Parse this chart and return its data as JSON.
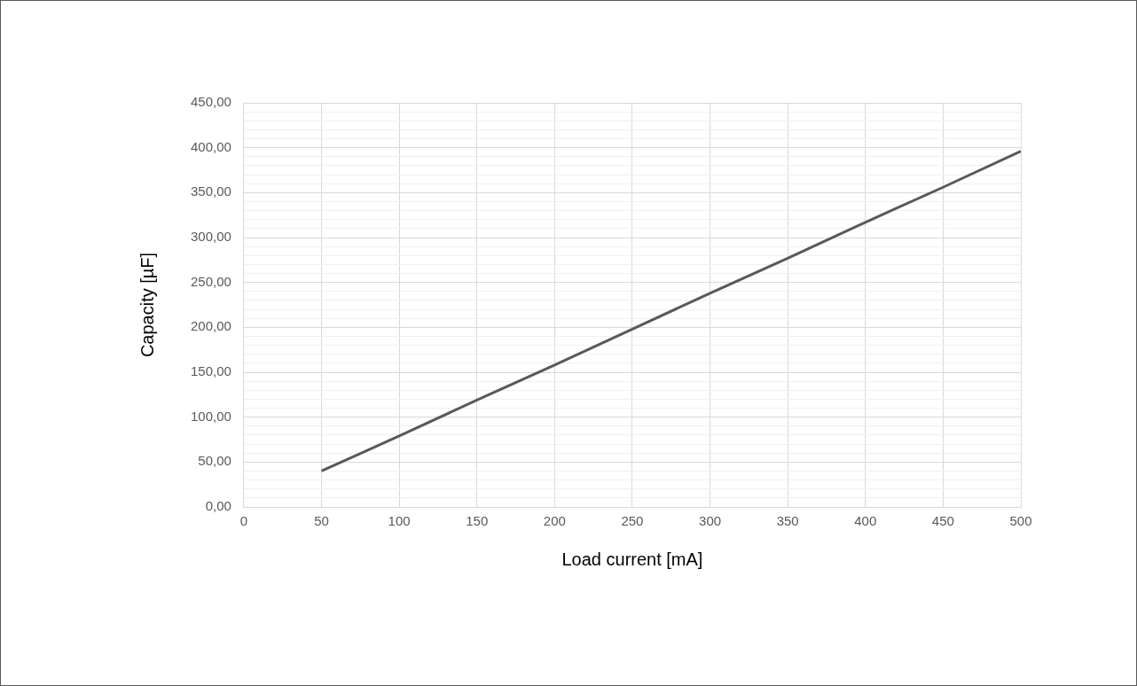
{
  "chart_data": {
    "type": "line",
    "xlabel": "Load current [mA]",
    "ylabel": "Capacity [µF]",
    "x": [
      50,
      100,
      150,
      200,
      250,
      300,
      350,
      400,
      450,
      500
    ],
    "series": [
      {
        "color": "#595959",
        "values": [
          40,
          79,
          119,
          158,
          198,
          238,
          277,
          317,
          356,
          396
        ]
      }
    ],
    "xlim": [
      0,
      500
    ],
    "xticks": [
      0,
      50,
      100,
      150,
      200,
      250,
      300,
      350,
      400,
      450,
      500
    ],
    "ylim": [
      0,
      450
    ],
    "yticks": [
      {
        "value": 0,
        "label": "0,00"
      },
      {
        "value": 10,
        "label": null
      },
      {
        "value": 20,
        "label": null
      },
      {
        "value": 30,
        "label": null
      },
      {
        "value": 40,
        "label": null
      },
      {
        "value": 50,
        "label": "50,00"
      },
      {
        "value": 60,
        "label": null
      },
      {
        "value": 70,
        "label": null
      },
      {
        "value": 80,
        "label": null
      },
      {
        "value": 90,
        "label": null
      },
      {
        "value": 100,
        "label": "100,00"
      },
      {
        "value": 110,
        "label": null
      },
      {
        "value": 120,
        "label": null
      },
      {
        "value": 130,
        "label": null
      },
      {
        "value": 140,
        "label": null
      },
      {
        "value": 150,
        "label": "150,00"
      },
      {
        "value": 160,
        "label": null
      },
      {
        "value": 170,
        "label": null
      },
      {
        "value": 180,
        "label": null
      },
      {
        "value": 190,
        "label": null
      },
      {
        "value": 200,
        "label": "200,00"
      },
      {
        "value": 210,
        "label": null
      },
      {
        "value": 220,
        "label": null
      },
      {
        "value": 230,
        "label": null
      },
      {
        "value": 240,
        "label": null
      },
      {
        "value": 250,
        "label": "250,00"
      },
      {
        "value": 260,
        "label": null
      },
      {
        "value": 270,
        "label": null
      },
      {
        "value": 280,
        "label": null
      },
      {
        "value": 290,
        "label": null
      },
      {
        "value": 300,
        "label": "300,00"
      },
      {
        "value": 310,
        "label": null
      },
      {
        "value": 320,
        "label": null
      },
      {
        "value": 330,
        "label": null
      },
      {
        "value": 340,
        "label": null
      },
      {
        "value": 350,
        "label": "350,00"
      },
      {
        "value": 360,
        "label": null
      },
      {
        "value": 370,
        "label": null
      },
      {
        "value": 380,
        "label": null
      },
      {
        "value": 390,
        "label": null
      },
      {
        "value": 400,
        "label": "400,00"
      },
      {
        "value": 410,
        "label": null
      },
      {
        "value": 420,
        "label": null
      },
      {
        "value": 430,
        "label": null
      },
      {
        "value": 440,
        "label": null
      },
      {
        "value": 450,
        "label": "450,00"
      }
    ],
    "grid": true,
    "legend": false,
    "marker": "none",
    "line_style": "solid"
  }
}
